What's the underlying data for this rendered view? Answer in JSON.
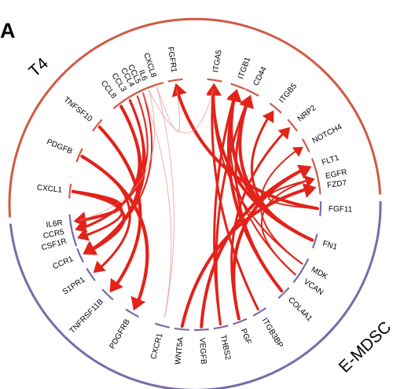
{
  "panel_label": "A",
  "colors": {
    "t4": "#d05a44",
    "emdsc": "#7a6bab",
    "chord": "#e2231a",
    "chord_faint": "#e8908a"
  },
  "groups": [
    {
      "id": "t4",
      "label": "T4"
    },
    {
      "id": "emdsc",
      "label": "E-MDSC"
    }
  ],
  "genes": [
    {
      "name": "FGF11",
      "angle": 2
    },
    {
      "name": "FN1",
      "angle": 17
    },
    {
      "name": "MDK",
      "angle": 29
    },
    {
      "name": "VCAN",
      "angle": 35
    },
    {
      "name": "COL4A1",
      "angle": 45
    },
    {
      "name": "ITGB3BP",
      "angle": 59
    },
    {
      "name": "PGF",
      "angle": 69
    },
    {
      "name": "THBS2",
      "angle": 78
    },
    {
      "name": "VEGFB",
      "angle": 87
    },
    {
      "name": "WNT5A",
      "angle": 96
    },
    {
      "name": "CXCR1",
      "angle": 105
    },
    {
      "name": "PDGFRB",
      "angle": 120
    },
    {
      "name": "TNFRSF11B",
      "angle": 134
    },
    {
      "name": "S1PR1",
      "angle": 146
    },
    {
      "name": "CCR1",
      "angle": 156
    },
    {
      "name": "CSF1R",
      "angle": 164
    },
    {
      "name": "CCR5",
      "angle": 168
    },
    {
      "name": "IL6R",
      "angle": 172
    },
    {
      "name": "CXCL1",
      "angle": 186
    },
    {
      "name": "PDGFB",
      "angle": 203
    },
    {
      "name": "TNFSF10",
      "angle": 219
    },
    {
      "name": "CCL8",
      "angle": 233
    },
    {
      "name": "CCL3",
      "angle": 238
    },
    {
      "name": "CCL4",
      "angle": 242
    },
    {
      "name": "CCL5",
      "angle": 245
    },
    {
      "name": "IL6",
      "angle": 248
    },
    {
      "name": "CXCL8",
      "angle": 252
    },
    {
      "name": "FGFR1",
      "angle": 261
    },
    {
      "name": "ITGA5",
      "angle": 279
    },
    {
      "name": "ITGB1",
      "angle": 290
    },
    {
      "name": "CD44",
      "angle": 297
    },
    {
      "name": "ITGB5",
      "angle": 310
    },
    {
      "name": "NRP2",
      "angle": 321
    },
    {
      "name": "NOTCH4",
      "angle": 332
    },
    {
      "name": "FLT1",
      "angle": 342
    },
    {
      "name": "EGFR",
      "angle": 348
    },
    {
      "name": "FZD7",
      "angle": 352
    }
  ],
  "links": [
    {
      "from": "PDGFB",
      "to": "PDGFRB",
      "w": 4
    },
    {
      "from": "CXCL1",
      "to": "CCR1",
      "w": 4
    },
    {
      "from": "CXCL1",
      "to": "IL6R",
      "w": 4
    },
    {
      "from": "TNFSF10",
      "to": "TNFRSF11B",
      "w": 4
    },
    {
      "from": "CCL8",
      "to": "CCR1",
      "w": 4
    },
    {
      "from": "CCL8",
      "to": "CCR5",
      "w": 3
    },
    {
      "from": "CCL3",
      "to": "CCR1",
      "w": 3
    },
    {
      "from": "CCL3",
      "to": "CCR5",
      "w": 3
    },
    {
      "from": "CCL4",
      "to": "CCR5",
      "w": 2
    },
    {
      "from": "CCL5",
      "to": "CCR1",
      "w": 2
    },
    {
      "from": "IL6",
      "to": "IL6R",
      "w": 1
    },
    {
      "from": "CXCL8",
      "to": "CXCR1",
      "w": 1
    },
    {
      "from": "CCL5",
      "to": "CXCR1",
      "w": 1
    },
    {
      "from": "CXCL1",
      "to": "CSF1R",
      "w": 3
    },
    {
      "from": "PDGFB",
      "to": "S1PR1",
      "w": 3
    },
    {
      "from": "VEGFB",
      "to": "FLT1",
      "w": 4
    },
    {
      "from": "PGF",
      "to": "FLT1",
      "w": 4
    },
    {
      "from": "PGF",
      "to": "NRP2",
      "w": 3
    },
    {
      "from": "FN1",
      "to": "ITGA5",
      "w": 4
    },
    {
      "from": "FN1",
      "to": "ITGB1",
      "w": 4
    },
    {
      "from": "FN1",
      "to": "CD44",
      "w": 4
    },
    {
      "from": "FN1",
      "to": "ITGB5",
      "w": 3
    },
    {
      "from": "COL4A1",
      "to": "ITGB1",
      "w": 4
    },
    {
      "from": "COL4A1",
      "to": "CD44",
      "w": 3
    },
    {
      "from": "THBS2",
      "to": "CD44",
      "w": 3
    },
    {
      "from": "THBS2",
      "to": "ITGB1",
      "w": 3
    },
    {
      "from": "VCAN",
      "to": "EGFR",
      "w": 2
    },
    {
      "from": "VCAN",
      "to": "ITGB1",
      "w": 2
    },
    {
      "from": "MDK",
      "to": "NOTCH4",
      "w": 2
    },
    {
      "from": "MDK",
      "to": "ITGA5",
      "w": 2
    },
    {
      "from": "ITGB3BP",
      "to": "ITGA5",
      "w": 3
    },
    {
      "from": "WNT5A",
      "to": "FZD7",
      "w": 4
    },
    {
      "from": "FGF11",
      "to": "FGFR1",
      "w": 4
    },
    {
      "from": "FGF11",
      "to": "EGFR",
      "w": 2
    },
    {
      "from": "PDGFB",
      "to": "PDGFRB",
      "w": 4
    },
    {
      "from": "CXCL8",
      "to": "FGFR1",
      "w": 1
    },
    {
      "from": "IL6",
      "to": "ITGA5",
      "w": 1
    }
  ]
}
